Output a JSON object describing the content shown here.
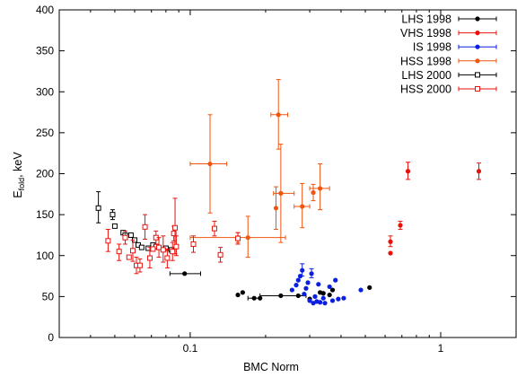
{
  "chart_data": {
    "type": "scatter",
    "title": "",
    "xlabel": "BMC Norm",
    "ylabel_main": "E",
    "ylabel_sub": "fold",
    "ylabel_suffix": ", keV",
    "x_scale": "log",
    "xlim": [
      0.03,
      2.0
    ],
    "ylim": [
      0,
      400
    ],
    "x_ticks": [
      0.1,
      1
    ],
    "x_tick_labels": [
      "0.1",
      "1"
    ],
    "y_ticks": [
      0,
      50,
      100,
      150,
      200,
      250,
      300,
      350,
      400
    ],
    "y_tick_labels": [
      "0",
      "50",
      "100",
      "150",
      "200",
      "250",
      "300",
      "350",
      "400"
    ],
    "grid": false,
    "legend_position": "top-right",
    "series": [
      {
        "name": "LHS 1998",
        "color": "#000000",
        "marker": "filled-circle",
        "points": [
          {
            "x": 0.095,
            "y": 78,
            "xerr": [
              0.083,
              0.11
            ]
          },
          {
            "x": 0.155,
            "y": 52
          },
          {
            "x": 0.162,
            "y": 55
          },
          {
            "x": 0.18,
            "y": 48,
            "xerr": [
              0.17,
              0.19
            ]
          },
          {
            "x": 0.19,
            "y": 48
          },
          {
            "x": 0.23,
            "y": 51,
            "xerr": [
              0.19,
              0.29
            ]
          },
          {
            "x": 0.27,
            "y": 51
          },
          {
            "x": 0.3,
            "y": 47
          },
          {
            "x": 0.33,
            "y": 55
          },
          {
            "x": 0.34,
            "y": 54
          },
          {
            "x": 0.36,
            "y": 52
          },
          {
            "x": 0.37,
            "y": 58
          },
          {
            "x": 0.52,
            "y": 61
          }
        ]
      },
      {
        "name": "VHS 1998",
        "color": "#e8120c",
        "marker": "filled-circle",
        "points": [
          {
            "x": 0.63,
            "y": 103
          },
          {
            "x": 0.63,
            "y": 117,
            "yerr": [
              111,
              124
            ]
          },
          {
            "x": 0.69,
            "y": 137,
            "yerr": [
              132,
              142
            ]
          },
          {
            "x": 0.74,
            "y": 203,
            "yerr": [
              193,
              214
            ]
          },
          {
            "x": 1.42,
            "y": 203,
            "yerr": [
              193,
              213
            ]
          }
        ]
      },
      {
        "name": "IS 1998",
        "color": "#0a1fe0",
        "marker": "filled-circle",
        "points": [
          {
            "x": 0.255,
            "y": 58
          },
          {
            "x": 0.265,
            "y": 64
          },
          {
            "x": 0.27,
            "y": 70
          },
          {
            "x": 0.275,
            "y": 75
          },
          {
            "x": 0.28,
            "y": 82,
            "yerr": [
              75,
              90
            ]
          },
          {
            "x": 0.285,
            "y": 53
          },
          {
            "x": 0.29,
            "y": 60
          },
          {
            "x": 0.295,
            "y": 67
          },
          {
            "x": 0.3,
            "y": 45
          },
          {
            "x": 0.305,
            "y": 78,
            "yerr": [
              73,
              84
            ]
          },
          {
            "x": 0.31,
            "y": 42
          },
          {
            "x": 0.315,
            "y": 50
          },
          {
            "x": 0.32,
            "y": 44
          },
          {
            "x": 0.325,
            "y": 65
          },
          {
            "x": 0.33,
            "y": 43
          },
          {
            "x": 0.34,
            "y": 48
          },
          {
            "x": 0.345,
            "y": 42
          },
          {
            "x": 0.36,
            "y": 62
          },
          {
            "x": 0.37,
            "y": 45
          },
          {
            "x": 0.38,
            "y": 70
          },
          {
            "x": 0.39,
            "y": 47
          },
          {
            "x": 0.41,
            "y": 48
          },
          {
            "x": 0.48,
            "y": 58
          }
        ]
      },
      {
        "name": "HSS 1998",
        "color": "#f0550e",
        "marker": "filled-circle",
        "points": [
          {
            "x": 0.12,
            "y": 212,
            "xerr": [
              0.1,
              0.14
            ],
            "yerr": [
              152,
              272
            ]
          },
          {
            "x": 0.155,
            "y": 122,
            "yerr": [
              116,
              128
            ]
          },
          {
            "x": 0.17,
            "y": 122,
            "xerr": [
              0.1,
              0.24
            ],
            "yerr": [
              98,
              148
            ]
          },
          {
            "x": 0.22,
            "y": 158,
            "yerr": [
              132,
              184
            ]
          },
          {
            "x": 0.225,
            "y": 272,
            "xerr": [
              0.21,
              0.245
            ],
            "yerr": [
              230,
              315
            ]
          },
          {
            "x": 0.23,
            "y": 176,
            "xerr": [
              0.215,
              0.26
            ],
            "yerr": [
              116,
              236
            ]
          },
          {
            "x": 0.28,
            "y": 160,
            "xerr": [
              0.26,
              0.3
            ],
            "yerr": [
              134,
              188
            ]
          },
          {
            "x": 0.31,
            "y": 177,
            "yerr": [
              167,
              187
            ]
          },
          {
            "x": 0.33,
            "y": 182,
            "xerr": [
              0.3,
              0.36
            ],
            "yerr": [
              156,
              212
            ]
          }
        ]
      },
      {
        "name": "LHS 2000",
        "color": "#000000",
        "marker": "open-square",
        "points": [
          {
            "x": 0.043,
            "y": 158,
            "yerr": [
              140,
              178
            ]
          },
          {
            "x": 0.049,
            "y": 150,
            "yerr": [
              144,
              156
            ]
          },
          {
            "x": 0.05,
            "y": 136
          },
          {
            "x": 0.054,
            "y": 128
          },
          {
            "x": 0.055,
            "y": 125
          },
          {
            "x": 0.058,
            "y": 125
          },
          {
            "x": 0.06,
            "y": 119
          },
          {
            "x": 0.062,
            "y": 113
          },
          {
            "x": 0.064,
            "y": 110
          },
          {
            "x": 0.068,
            "y": 109
          },
          {
            "x": 0.071,
            "y": 113
          },
          {
            "x": 0.073,
            "y": 111
          },
          {
            "x": 0.08,
            "y": 109
          },
          {
            "x": 0.084,
            "y": 107
          }
        ]
      },
      {
        "name": "HSS 2000",
        "color": "#e8120c",
        "marker": "open-square",
        "points": [
          {
            "x": 0.047,
            "y": 118,
            "yerr": [
              105,
              132
            ]
          },
          {
            "x": 0.052,
            "y": 105,
            "yerr": [
              94,
              114
            ]
          },
          {
            "x": 0.055,
            "y": 122,
            "yerr": [
              114,
              130
            ]
          },
          {
            "x": 0.057,
            "y": 98
          },
          {
            "x": 0.059,
            "y": 106,
            "yerr": [
              93,
              119
            ]
          },
          {
            "x": 0.061,
            "y": 88,
            "yerr": [
              78,
              98
            ]
          },
          {
            "x": 0.063,
            "y": 88,
            "yerr": [
              80,
              96
            ]
          },
          {
            "x": 0.066,
            "y": 135,
            "yerr": [
              120,
              150
            ]
          },
          {
            "x": 0.069,
            "y": 97,
            "yerr": [
              85,
              110
            ]
          },
          {
            "x": 0.071,
            "y": 108
          },
          {
            "x": 0.073,
            "y": 122,
            "yerr": [
              114,
              130
            ]
          },
          {
            "x": 0.075,
            "y": 110,
            "yerr": [
              98,
              122
            ]
          },
          {
            "x": 0.078,
            "y": 107,
            "yerr": [
              92,
              124
            ]
          },
          {
            "x": 0.081,
            "y": 97,
            "yerr": [
              85,
              108
            ]
          },
          {
            "x": 0.085,
            "y": 105,
            "yerr": [
              94,
              116
            ]
          },
          {
            "x": 0.086,
            "y": 127,
            "yerr": [
              118,
              136
            ]
          },
          {
            "x": 0.087,
            "y": 134,
            "yerr": [
              102,
              170
            ]
          },
          {
            "x": 0.088,
            "y": 111,
            "yerr": [
              100,
              124
            ]
          },
          {
            "x": 0.103,
            "y": 114,
            "yerr": [
              104,
              124
            ]
          },
          {
            "x": 0.125,
            "y": 133,
            "yerr": [
              124,
              142
            ]
          },
          {
            "x": 0.132,
            "y": 101,
            "yerr": [
              92,
              110
            ]
          },
          {
            "x": 0.155,
            "y": 121,
            "yerr": [
              114,
              128
            ]
          }
        ]
      }
    ]
  }
}
